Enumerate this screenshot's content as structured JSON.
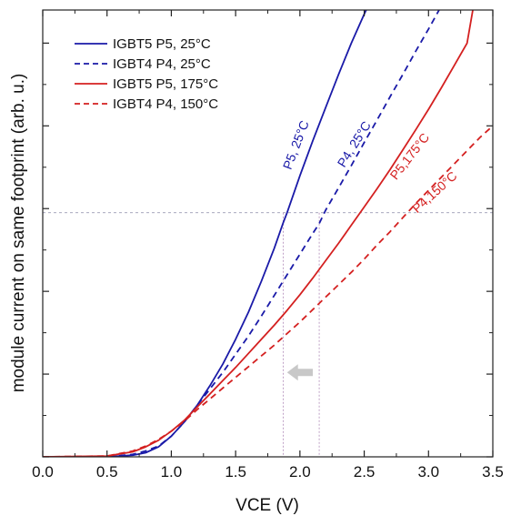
{
  "chart_data": {
    "type": "line",
    "title": "",
    "xlabel": "VCE (V)",
    "ylabel": "module current on same footprint (arb. u.)",
    "xlim": [
      0.0,
      3.5
    ],
    "ylim": [
      0,
      5.4
    ],
    "xticks": [
      "0.0",
      "0.5",
      "1.0",
      "1.5",
      "2.0",
      "2.5",
      "3.0",
      "3.5"
    ],
    "grid": false,
    "legend_position": "top-left",
    "series": [
      {
        "name": "IGBT5 P5, 25°C",
        "color": "#1a1aa8",
        "dash": "solid",
        "x": [
          0.0,
          0.5,
          0.7,
          0.8,
          0.9,
          1.0,
          1.1,
          1.2,
          1.3,
          1.4,
          1.5,
          1.6,
          1.7,
          1.8,
          1.87,
          1.9,
          2.0,
          2.1,
          2.2,
          2.3,
          2.4,
          2.5,
          2.53
        ],
        "y": [
          0.0,
          0.0,
          0.02,
          0.05,
          0.12,
          0.25,
          0.42,
          0.62,
          0.86,
          1.12,
          1.42,
          1.75,
          2.12,
          2.52,
          2.83,
          2.95,
          3.4,
          3.82,
          4.22,
          4.62,
          5.0,
          5.35,
          5.45
        ]
      },
      {
        "name": "IGBT4 P4, 25°C",
        "color": "#1a1aa8",
        "dash": "dashed",
        "x": [
          0.0,
          0.5,
          0.7,
          0.8,
          0.9,
          1.0,
          1.1,
          1.2,
          1.3,
          1.4,
          1.5,
          1.6,
          1.7,
          1.8,
          1.9,
          2.0,
          2.1,
          2.15,
          2.2,
          2.3,
          2.4,
          2.5,
          2.6,
          2.7,
          2.8,
          2.9,
          3.0,
          3.1
        ],
        "y": [
          0.0,
          0.0,
          0.03,
          0.07,
          0.13,
          0.25,
          0.42,
          0.62,
          0.82,
          1.02,
          1.24,
          1.46,
          1.7,
          1.95,
          2.2,
          2.45,
          2.7,
          2.82,
          2.98,
          3.25,
          3.52,
          3.8,
          4.07,
          4.35,
          4.62,
          4.9,
          5.17,
          5.45
        ]
      },
      {
        "name": "IGBT5 P5, 175°C",
        "color": "#d42020",
        "dash": "solid",
        "x": [
          0.0,
          0.5,
          0.7,
          0.8,
          0.9,
          1.0,
          1.1,
          1.2,
          1.3,
          1.4,
          1.5,
          1.6,
          1.7,
          1.8,
          1.9,
          2.0,
          2.1,
          2.2,
          2.3,
          2.4,
          2.5,
          2.6,
          2.7,
          2.8,
          2.9,
          3.0,
          3.1,
          3.2,
          3.3,
          3.35
        ],
        "y": [
          0.0,
          0.01,
          0.06,
          0.12,
          0.2,
          0.31,
          0.44,
          0.6,
          0.76,
          0.92,
          1.08,
          1.25,
          1.42,
          1.59,
          1.77,
          1.96,
          2.16,
          2.37,
          2.58,
          2.8,
          3.02,
          3.24,
          3.47,
          3.71,
          3.95,
          4.2,
          4.46,
          4.73,
          5.0,
          5.45
        ]
      },
      {
        "name": "IGBT4 P4, 150°C",
        "color": "#d42020",
        "dash": "dashed",
        "x": [
          0.0,
          0.5,
          0.7,
          0.8,
          0.9,
          1.0,
          1.1,
          1.2,
          1.3,
          1.4,
          1.5,
          1.6,
          1.7,
          1.8,
          1.9,
          2.0,
          2.1,
          2.2,
          2.3,
          2.4,
          2.5,
          2.6,
          2.7,
          2.8,
          2.9,
          3.0,
          3.1,
          3.2,
          3.3,
          3.4,
          3.5
        ],
        "y": [
          0.0,
          0.01,
          0.07,
          0.13,
          0.21,
          0.31,
          0.43,
          0.57,
          0.7,
          0.83,
          0.96,
          1.09,
          1.22,
          1.35,
          1.49,
          1.63,
          1.78,
          1.93,
          2.08,
          2.23,
          2.39,
          2.56,
          2.72,
          2.89,
          3.06,
          3.22,
          3.38,
          3.54,
          3.7,
          3.86,
          4.0
        ]
      }
    ],
    "reference_line_y": 2.95,
    "reference_verticals_x": [
      1.87,
      2.15
    ],
    "annotations": [
      {
        "text": "P5, 25°C",
        "x": 2.0,
        "y": 3.75,
        "color": "#1a1aa8",
        "rotate": -69
      },
      {
        "text": "P4, 25°C",
        "x": 2.45,
        "y": 3.75,
        "color": "#1a1aa8",
        "rotate": -58
      },
      {
        "text": "P5,175°C",
        "x": 2.88,
        "y": 3.6,
        "color": "#d42020",
        "rotate": -52
      },
      {
        "text": "P4,150°C",
        "x": 3.07,
        "y": 3.16,
        "color": "#d42020",
        "rotate": -42
      }
    ],
    "arrow": {
      "from_x": 2.1,
      "to_x": 1.9,
      "y": 1.02,
      "color": "#c8c8c8"
    }
  }
}
